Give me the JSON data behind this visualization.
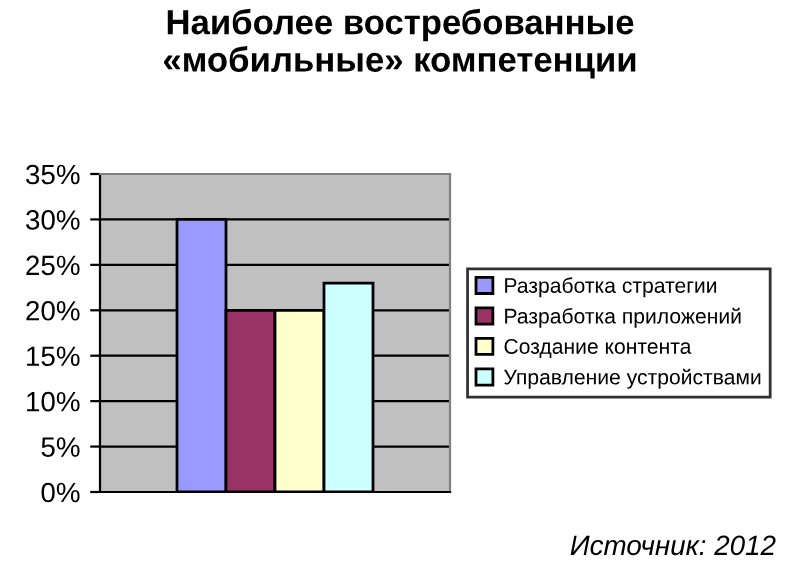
{
  "chart_data": {
    "type": "bar",
    "title": "Наиболее востребованные\n«мобильные» компетенции",
    "categories": [
      null
    ],
    "series": [
      {
        "name": "Разработка стратегии",
        "color": "#9999ff",
        "values": [
          30
        ]
      },
      {
        "name": "Разработка приложений",
        "color": "#993366",
        "values": [
          20
        ]
      },
      {
        "name": "Создание контента",
        "color": "#ffffcc",
        "values": [
          20
        ]
      },
      {
        "name": "Управление устройствами",
        "color": "#ccffff",
        "values": [
          23
        ]
      }
    ],
    "ylim": [
      0,
      35
    ],
    "yticks": [
      {
        "value": 0,
        "label": "0%"
      },
      {
        "value": 5,
        "label": "5%"
      },
      {
        "value": 10,
        "label": "10%"
      },
      {
        "value": 15,
        "label": "15%"
      },
      {
        "value": 20,
        "label": "20%"
      },
      {
        "value": 25,
        "label": "25%"
      },
      {
        "value": 30,
        "label": "30%"
      },
      {
        "value": 35,
        "label": "35%"
      }
    ],
    "grid": "y",
    "legend": "right",
    "annotations": [
      "Источник: 2012"
    ]
  }
}
